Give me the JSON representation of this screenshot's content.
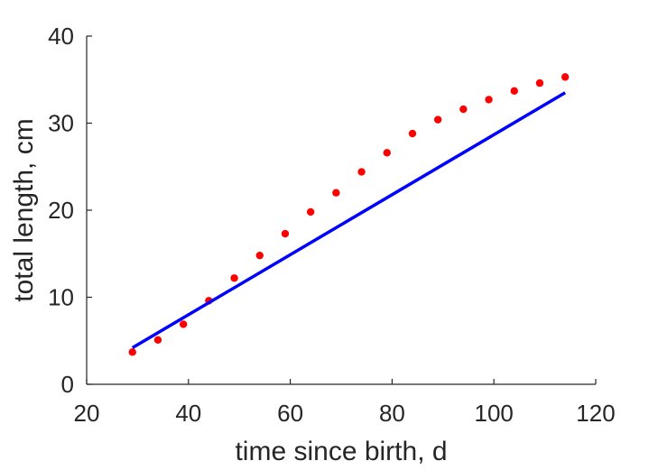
{
  "chart_data": {
    "type": "scatter",
    "xlabel": "time since birth, d",
    "ylabel": "total length, cm",
    "xlim": [
      20,
      120
    ],
    "ylim": [
      0,
      40
    ],
    "xticks": [
      20,
      40,
      60,
      80,
      100,
      120
    ],
    "yticks": [
      0,
      10,
      20,
      30,
      40
    ],
    "grid": false,
    "box": "left-bottom",
    "series": [
      {
        "style": "markers",
        "color": "#ff0000",
        "x": [
          29,
          34,
          39,
          44,
          49,
          54,
          59,
          64,
          69,
          74,
          79,
          84,
          89,
          94,
          99,
          104,
          109,
          114
        ],
        "y": [
          3.7,
          5.1,
          6.9,
          9.6,
          12.2,
          14.8,
          17.3,
          19.8,
          22.0,
          24.4,
          26.6,
          28.8,
          30.4,
          31.6,
          32.7,
          33.7,
          34.6,
          35.3
        ]
      },
      {
        "style": "line",
        "color": "#0000ff",
        "x": [
          29,
          114
        ],
        "y": [
          4.2,
          33.5
        ]
      }
    ]
  }
}
